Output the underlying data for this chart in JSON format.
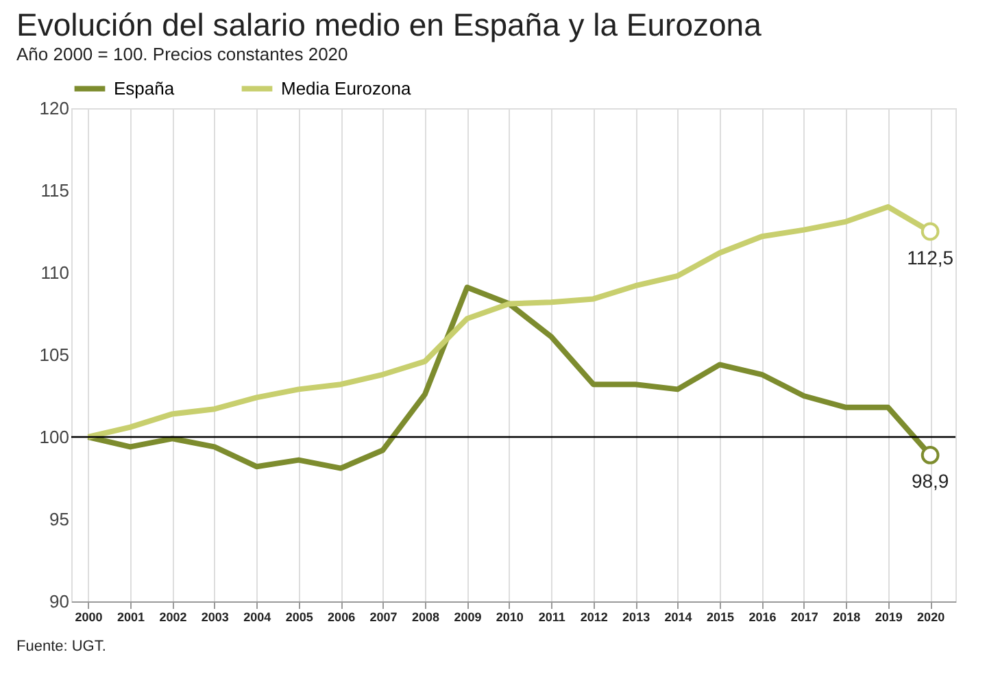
{
  "chart_data": {
    "type": "line",
    "title": "Evolución del salario medio en España y la Eurozona",
    "subtitle": "Año 2000 = 100. Precios constantes 2020",
    "x": [
      2000,
      2001,
      2002,
      2003,
      2004,
      2005,
      2006,
      2007,
      2008,
      2009,
      2010,
      2011,
      2012,
      2013,
      2014,
      2015,
      2016,
      2017,
      2018,
      2019,
      2020
    ],
    "series": [
      {
        "name": "España",
        "color": "#7d8c2e",
        "values": [
          100,
          99.4,
          99.9,
          99.4,
          98.2,
          98.6,
          98.1,
          99.2,
          102.6,
          109.1,
          108.1,
          106.1,
          103.2,
          103.2,
          102.9,
          104.4,
          103.8,
          102.5,
          101.8,
          101.8,
          98.9
        ]
      },
      {
        "name": "Media Eurozona",
        "color": "#c8cf6e",
        "values": [
          100,
          100.6,
          101.4,
          101.7,
          102.4,
          102.9,
          103.2,
          103.8,
          104.6,
          107.2,
          108.1,
          108.2,
          108.4,
          109.2,
          109.8,
          111.2,
          112.2,
          112.6,
          113.1,
          114.0,
          112.5
        ]
      }
    ],
    "xlim": [
      1999.6,
      2020.6
    ],
    "xticks": [
      2000,
      2001,
      2002,
      2003,
      2004,
      2005,
      2006,
      2007,
      2008,
      2009,
      2010,
      2011,
      2012,
      2013,
      2014,
      2015,
      2016,
      2017,
      2018,
      2019,
      2020
    ],
    "ylim": [
      90,
      120
    ],
    "yticks": [
      90,
      95,
      100,
      105,
      110,
      115,
      120
    ],
    "ref_lines": [
      {
        "axis": "y",
        "value": 100,
        "color": "#000000"
      }
    ],
    "annotations": [
      {
        "text": "112,5",
        "x": 2020,
        "y": 112.5
      },
      {
        "text": "98,9",
        "x": 2020,
        "y": 98.9
      },
      "Fuente: UGT."
    ],
    "grid": "x",
    "legend": "top left",
    "marker": "none",
    "line_style": "solid"
  }
}
